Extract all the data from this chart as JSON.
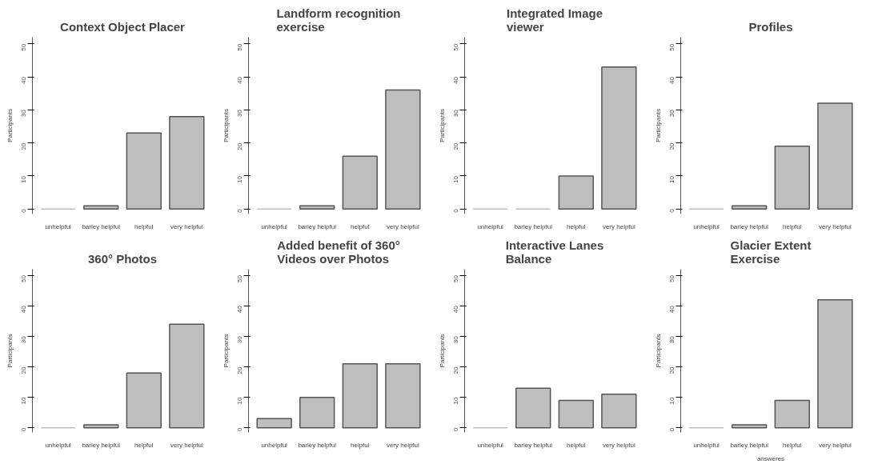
{
  "chart_data": [
    {
      "type": "bar",
      "title": "Context Object Placer",
      "ylabel": "Participants",
      "categories": [
        "unhelpful",
        "barley helpful",
        "helpful",
        "very helpful"
      ],
      "values": [
        0,
        1,
        23,
        28
      ],
      "color": "#bebebe",
      "ylim": [
        -1.5,
        52
      ],
      "yticks": [
        0,
        10,
        20,
        30,
        40,
        50
      ],
      "grid": false
    },
    {
      "type": "bar",
      "title": "Landform recognition exercise",
      "ylabel": "Participants",
      "categories": [
        "unhelpful",
        "barley helpful",
        "helpful",
        "very helpful"
      ],
      "values": [
        0,
        1,
        16,
        36
      ],
      "color": "#bebebe",
      "ylim": [
        -1.5,
        52
      ],
      "yticks": [
        0,
        10,
        20,
        30,
        40,
        50
      ],
      "grid": false
    },
    {
      "type": "bar",
      "title": "Integrated Image viewer",
      "ylabel": "Participants",
      "categories": [
        "unhelpful",
        "barley helpful",
        "helpful",
        "very helpful"
      ],
      "values": [
        0,
        0,
        10,
        43
      ],
      "color": "#bebebe",
      "ylim": [
        -1.5,
        52
      ],
      "yticks": [
        0,
        10,
        20,
        30,
        40,
        50
      ],
      "grid": false
    },
    {
      "type": "bar",
      "title": "Profiles",
      "ylabel": "Participants",
      "categories": [
        "unhelpful",
        "barley helpful",
        "helpful",
        "very helpful"
      ],
      "values": [
        0,
        1,
        19,
        32
      ],
      "color": "#bebebe",
      "ylim": [
        -1.5,
        52
      ],
      "yticks": [
        0,
        10,
        20,
        30,
        40,
        50
      ],
      "grid": false
    },
    {
      "type": "bar",
      "title": "360° Photos",
      "ylabel": "Participants",
      "categories": [
        "unhelpful",
        "barley helpful",
        "helpful",
        "very helpful"
      ],
      "values": [
        0,
        1,
        18,
        34
      ],
      "color": "#bebebe",
      "ylim": [
        -1.5,
        52
      ],
      "yticks": [
        0,
        10,
        20,
        30,
        40,
        50
      ],
      "grid": false
    },
    {
      "type": "bar",
      "title": "Added benefit of 360° Videos over Photos",
      "ylabel": "Participants",
      "categories": [
        "unhelpful",
        "barley helpful",
        "helpful",
        "very helpful"
      ],
      "values": [
        3,
        10,
        21,
        21
      ],
      "color": "#bebebe",
      "ylim": [
        -1.5,
        52
      ],
      "yticks": [
        0,
        10,
        20,
        30,
        40,
        50
      ],
      "grid": false
    },
    {
      "type": "bar",
      "title": "Interactive Lanes Balance",
      "ylabel": "Participants",
      "categories": [
        "unhelpful",
        "barley helpful",
        "helpful",
        "very helpful"
      ],
      "values": [
        0,
        13,
        9,
        11
      ],
      "color": "#bebebe",
      "ylim": [
        -1.5,
        52
      ],
      "yticks": [
        0,
        10,
        20,
        30,
        40,
        50
      ],
      "grid": false
    },
    {
      "type": "bar",
      "title": "Glacier Extent Exercise",
      "ylabel": "Participants",
      "xlabel": "answeres",
      "categories": [
        "unhelpful",
        "barley helpful",
        "helpful",
        "very helpful"
      ],
      "values": [
        0,
        1,
        9,
        42
      ],
      "color": "#bebebe",
      "ylim": [
        -1.5,
        52
      ],
      "yticks": [
        0,
        10,
        20,
        30,
        40,
        50
      ],
      "grid": false
    }
  ]
}
